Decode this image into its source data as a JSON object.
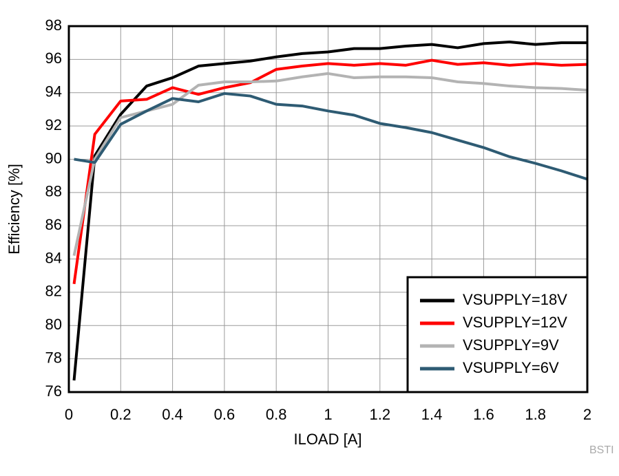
{
  "chart_data": {
    "type": "line",
    "xlabel": "ILOAD [A]",
    "ylabel": "Efficiency [%]",
    "x": [
      0.02,
      0.1,
      0.2,
      0.3,
      0.4,
      0.5,
      0.6,
      0.7,
      0.8,
      0.9,
      1.0,
      1.1,
      1.2,
      1.3,
      1.4,
      1.5,
      1.6,
      1.7,
      1.8,
      1.9,
      2.0
    ],
    "series": [
      {
        "name": "VSUPPLY=18V",
        "color": "#000000",
        "values": [
          76.7,
          90.2,
          92.7,
          94.4,
          94.9,
          95.6,
          95.75,
          95.9,
          96.15,
          96.35,
          96.45,
          96.65,
          96.65,
          96.8,
          96.9,
          96.7,
          96.95,
          97.05,
          96.9,
          97.0,
          97.0
        ]
      },
      {
        "name": "VSUPPLY=12V",
        "color": "#ff0000",
        "values": [
          82.5,
          91.5,
          93.5,
          93.6,
          94.3,
          93.9,
          94.3,
          94.6,
          95.4,
          95.6,
          95.75,
          95.65,
          95.75,
          95.65,
          95.95,
          95.7,
          95.8,
          95.65,
          95.75,
          95.65,
          95.7
        ]
      },
      {
        "name": "VSUPPLY=9V",
        "color": "#b3b3b3",
        "values": [
          84.2,
          90.0,
          92.5,
          92.9,
          93.3,
          94.45,
          94.65,
          94.65,
          94.7,
          94.95,
          95.15,
          94.9,
          94.95,
          94.95,
          94.9,
          94.65,
          94.55,
          94.4,
          94.3,
          94.25,
          94.15
        ]
      },
      {
        "name": "VSUPPLY=6V",
        "color": "#2e5b73",
        "values": [
          90.0,
          89.8,
          92.1,
          92.9,
          93.65,
          93.45,
          93.95,
          93.8,
          93.3,
          93.2,
          92.9,
          92.65,
          92.15,
          91.9,
          91.6,
          91.15,
          90.7,
          90.15,
          89.75,
          89.3,
          88.8
        ]
      }
    ],
    "xlim": [
      0,
      2
    ],
    "xticks": [
      0,
      0.2,
      0.4,
      0.6,
      0.8,
      1,
      1.2,
      1.4,
      1.6,
      1.8,
      2
    ],
    "ylim": [
      76,
      98
    ],
    "yticks": [
      76,
      78,
      80,
      82,
      84,
      86,
      88,
      90,
      92,
      94,
      96,
      98
    ],
    "grid": true,
    "legend": "lower right"
  },
  "watermark": "BSTI"
}
